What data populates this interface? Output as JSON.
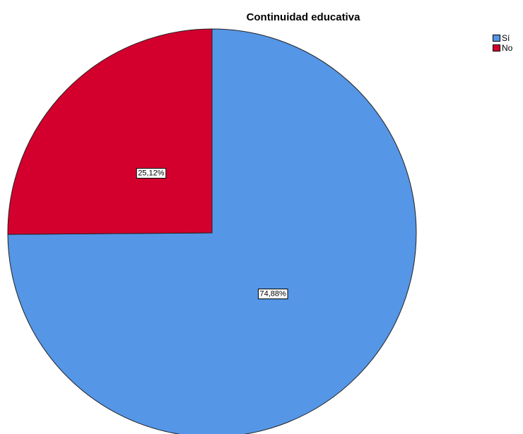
{
  "chart_data": {
    "type": "pie",
    "title": "Continuidad educativa",
    "categories": [
      "Sí",
      "No"
    ],
    "values": [
      74.88,
      25.12
    ],
    "labels": [
      "74,88%",
      "25,12%"
    ],
    "colors": [
      "#5596e6",
      "#d3002e"
    ],
    "legend_position": "top-right"
  }
}
